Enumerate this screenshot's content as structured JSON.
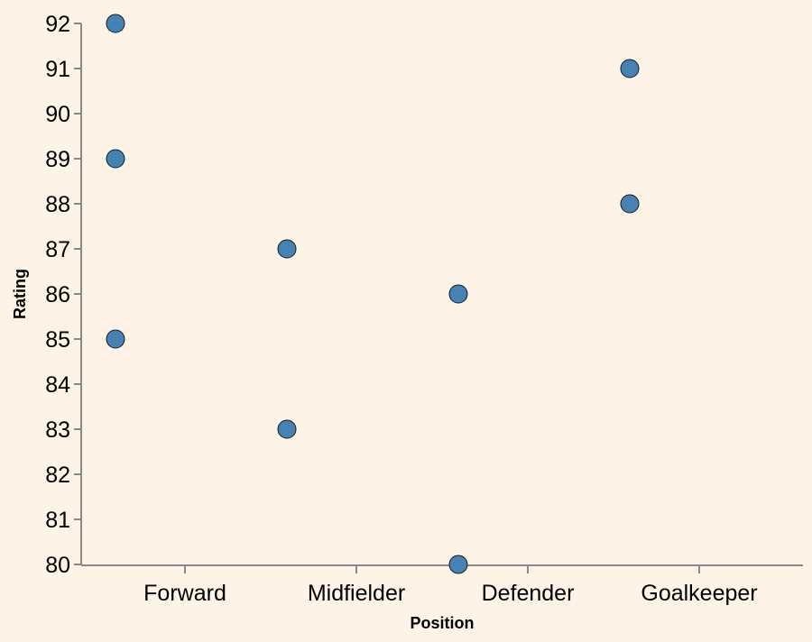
{
  "chart_data": {
    "type": "scatter",
    "xlabel": "Position",
    "ylabel": "Rating",
    "categories": [
      "Forward",
      "Midfielder",
      "Defender",
      "Goalkeeper"
    ],
    "ylim": [
      80,
      92
    ],
    "yticks": [
      80,
      81,
      82,
      83,
      84,
      85,
      86,
      87,
      88,
      89,
      90,
      91,
      92
    ],
    "grid": false,
    "points": [
      {
        "x": "Forward",
        "y": 92
      },
      {
        "x": "Forward",
        "y": 89
      },
      {
        "x": "Forward",
        "y": 85
      },
      {
        "x": "Midfielder",
        "y": 87
      },
      {
        "x": "Midfielder",
        "y": 83
      },
      {
        "x": "Defender",
        "y": 86
      },
      {
        "x": "Defender",
        "y": 80
      },
      {
        "x": "Goalkeeper",
        "y": 91
      },
      {
        "x": "Goalkeeper",
        "y": 88
      }
    ],
    "colors": {
      "background": "#fdf3e6",
      "point": "#4682b4",
      "axis": "#888888"
    }
  }
}
